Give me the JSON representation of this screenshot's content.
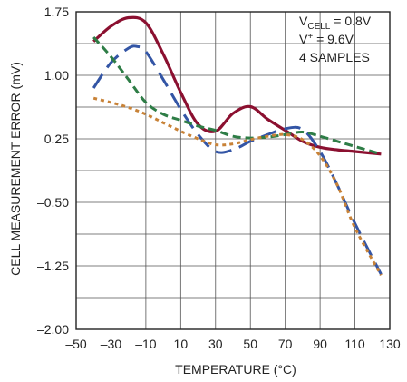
{
  "chart_data": {
    "type": "line",
    "xlabel": "TEMPERATURE (°C)",
    "ylabel": "CELL MEASUREMENT ERROR (mV)",
    "xlim": [
      -50,
      130
    ],
    "ylim": [
      -2.0,
      1.75
    ],
    "x_ticks": [
      -50,
      -30,
      -10,
      10,
      30,
      50,
      70,
      90,
      110,
      130
    ],
    "x_tick_labels": [
      "–50",
      "–30",
      "–10",
      "10",
      "30",
      "50",
      "70",
      "90",
      "110",
      "130"
    ],
    "y_ticks": [
      -2.0,
      -1.25,
      -0.5,
      0.25,
      1.0,
      1.75
    ],
    "y_tick_labels": [
      "–2.00",
      "–1.25",
      "–0.50",
      "0.25",
      "1.00",
      "1.75"
    ],
    "grid": true,
    "annotation": {
      "line1_main": "V",
      "line1_sub": "CELL",
      "line1_rest": " = 0.8V",
      "line2_main": "V",
      "line2_sup": "+",
      "line2_rest": " = 9.6V",
      "line3": "4 SAMPLES"
    },
    "series": [
      {
        "style": "solid",
        "color": "#8b1030",
        "x": [
          -40,
          -30,
          -20,
          -10,
          0,
          10,
          20,
          30,
          40,
          50,
          60,
          70,
          80,
          90,
          100,
          110,
          125
        ],
        "y": [
          1.4,
          1.58,
          1.68,
          1.62,
          1.25,
          0.8,
          0.42,
          0.34,
          0.55,
          0.63,
          0.48,
          0.35,
          0.22,
          0.15,
          0.12,
          0.1,
          0.07
        ]
      },
      {
        "style": "long-dash",
        "color": "#3355a5",
        "x": [
          -40,
          -30,
          -20,
          -15,
          -10,
          0,
          10,
          20,
          30,
          40,
          50,
          60,
          70,
          80,
          90,
          100,
          110,
          125
        ],
        "y": [
          0.85,
          1.15,
          1.32,
          1.34,
          1.28,
          0.95,
          0.6,
          0.3,
          0.1,
          0.12,
          0.22,
          0.3,
          0.37,
          0.36,
          0.1,
          -0.3,
          -0.75,
          -1.35
        ]
      },
      {
        "style": "medium-dash",
        "color": "#2e7d46",
        "x": [
          -40,
          -30,
          -20,
          -10,
          0,
          10,
          20,
          30,
          40,
          50,
          60,
          70,
          80,
          90,
          100,
          110,
          125
        ],
        "y": [
          1.45,
          1.22,
          0.95,
          0.68,
          0.54,
          0.47,
          0.4,
          0.35,
          0.28,
          0.26,
          0.27,
          0.3,
          0.33,
          0.28,
          0.22,
          0.16,
          0.07
        ]
      },
      {
        "style": "short-dash",
        "color": "#c88237",
        "x": [
          -40,
          -30,
          -20,
          -10,
          0,
          10,
          20,
          30,
          40,
          50,
          60,
          70,
          80,
          90,
          100,
          110,
          125
        ],
        "y": [
          0.73,
          0.68,
          0.62,
          0.54,
          0.44,
          0.34,
          0.25,
          0.18,
          0.19,
          0.24,
          0.28,
          0.3,
          0.24,
          0.05,
          -0.3,
          -0.8,
          -1.36
        ]
      }
    ]
  }
}
